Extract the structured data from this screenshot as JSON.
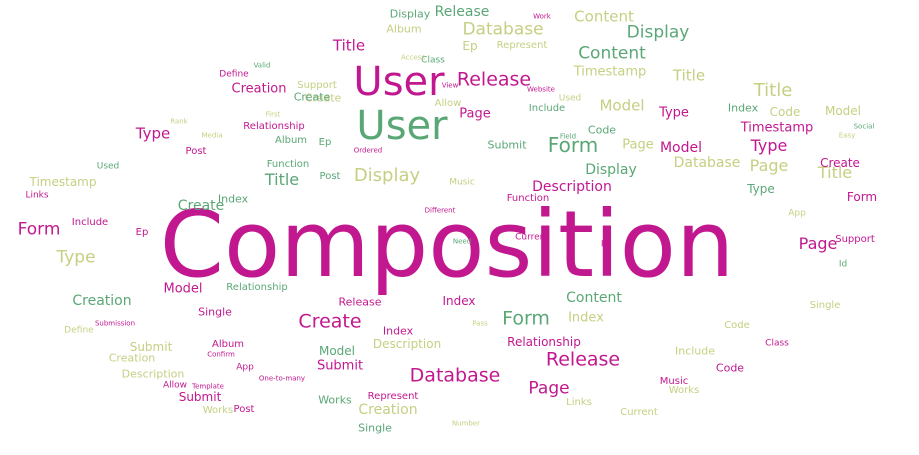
{
  "palette": {
    "magenta": "#c2188f",
    "green": "#5aa776",
    "olive": "#c6cf82",
    "pink": "#cf5aa6"
  },
  "words": [
    {
      "text": "Composition",
      "color": "magenta"
    },
    {
      "text": "User",
      "color": "magenta"
    },
    {
      "text": "User",
      "color": "green"
    },
    {
      "text": "Release",
      "color": "magenta"
    },
    {
      "text": "Release",
      "color": "green"
    },
    {
      "text": "Release",
      "color": "magenta"
    },
    {
      "text": "Release",
      "color": "magenta"
    },
    {
      "text": "Database",
      "color": "olive"
    },
    {
      "text": "Database",
      "color": "magenta"
    },
    {
      "text": "Database",
      "color": "olive"
    },
    {
      "text": "Display",
      "color": "green"
    },
    {
      "text": "Display",
      "color": "green"
    },
    {
      "text": "Display",
      "color": "olive"
    },
    {
      "text": "Display",
      "color": "green"
    },
    {
      "text": "Content",
      "color": "olive"
    },
    {
      "text": "Content",
      "color": "green"
    },
    {
      "text": "Content",
      "color": "green"
    },
    {
      "text": "Title",
      "color": "magenta"
    },
    {
      "text": "Title",
      "color": "olive"
    },
    {
      "text": "Title",
      "color": "green"
    },
    {
      "text": "Title",
      "color": "olive"
    },
    {
      "text": "Title",
      "color": "olive"
    },
    {
      "text": "Form",
      "color": "magenta"
    },
    {
      "text": "Form",
      "color": "green"
    },
    {
      "text": "Form",
      "color": "magenta"
    },
    {
      "text": "Form",
      "color": "green"
    },
    {
      "text": "Type",
      "color": "magenta"
    },
    {
      "text": "Type",
      "color": "magenta"
    },
    {
      "text": "Type",
      "color": "olive"
    },
    {
      "text": "Type",
      "color": "green"
    },
    {
      "text": "Type",
      "color": "magenta"
    },
    {
      "text": "Page",
      "color": "magenta"
    },
    {
      "text": "Page",
      "color": "olive"
    },
    {
      "text": "Page",
      "color": "olive"
    },
    {
      "text": "Page",
      "color": "magenta"
    },
    {
      "text": "Page",
      "color": "magenta"
    },
    {
      "text": "Create",
      "color": "magenta"
    },
    {
      "text": "Create",
      "color": "olive"
    },
    {
      "text": "Create",
      "color": "green"
    },
    {
      "text": "Create",
      "color": "magenta"
    },
    {
      "text": "Create",
      "color": "green"
    },
    {
      "text": "Creation",
      "color": "magenta"
    },
    {
      "text": "Creation",
      "color": "green"
    },
    {
      "text": "Creation",
      "color": "olive"
    },
    {
      "text": "Creation",
      "color": "olive"
    },
    {
      "text": "Model",
      "color": "olive"
    },
    {
      "text": "Model",
      "color": "magenta"
    },
    {
      "text": "Model",
      "color": "olive"
    },
    {
      "text": "Model",
      "color": "green"
    },
    {
      "text": "Model",
      "color": "magenta"
    },
    {
      "text": "Timestamp",
      "color": "olive"
    },
    {
      "text": "Timestamp",
      "color": "magenta"
    },
    {
      "text": "Timestamp",
      "color": "olive"
    },
    {
      "text": "Index",
      "color": "green"
    },
    {
      "text": "Index",
      "color": "magenta"
    },
    {
      "text": "Index",
      "color": "olive"
    },
    {
      "text": "Index",
      "color": "magenta"
    },
    {
      "text": "Index",
      "color": "green"
    },
    {
      "text": "Description",
      "color": "magenta"
    },
    {
      "text": "Description",
      "color": "olive"
    },
    {
      "text": "Description",
      "color": "olive"
    },
    {
      "text": "Submit",
      "color": "magenta"
    },
    {
      "text": "Submit",
      "color": "green"
    },
    {
      "text": "Submit",
      "color": "olive"
    },
    {
      "text": "Submit",
      "color": "magenta"
    },
    {
      "text": "Album",
      "color": "olive"
    },
    {
      "text": "Album",
      "color": "green"
    },
    {
      "text": "Album",
      "color": "magenta"
    },
    {
      "text": "Relationship",
      "color": "magenta"
    },
    {
      "text": "Relationship",
      "color": "green"
    },
    {
      "text": "Relationship",
      "color": "magenta"
    },
    {
      "text": "Code",
      "color": "olive"
    },
    {
      "text": "Code",
      "color": "green"
    },
    {
      "text": "Code",
      "color": "magenta"
    },
    {
      "text": "Code",
      "color": "olive"
    },
    {
      "text": "Single",
      "color": "green"
    },
    {
      "text": "Single",
      "color": "magenta"
    },
    {
      "text": "Single",
      "color": "olive"
    },
    {
      "text": "Include",
      "color": "magenta"
    },
    {
      "text": "Include",
      "color": "green"
    },
    {
      "text": "Include",
      "color": "olive"
    },
    {
      "text": "Works",
      "color": "olive"
    },
    {
      "text": "Works",
      "color": "green"
    },
    {
      "text": "Works",
      "color": "olive"
    },
    {
      "text": "Post",
      "color": "magenta"
    },
    {
      "text": "Post",
      "color": "green"
    },
    {
      "text": "Post",
      "color": "magenta"
    },
    {
      "text": "Ep",
      "color": "olive"
    },
    {
      "text": "Ep",
      "color": "green"
    },
    {
      "text": "Ep",
      "color": "magenta"
    },
    {
      "text": "Support",
      "color": "olive"
    },
    {
      "text": "Support",
      "color": "magenta"
    },
    {
      "text": "Current",
      "color": "magenta"
    },
    {
      "text": "Current",
      "color": "olive"
    },
    {
      "text": "Links",
      "color": "magenta"
    },
    {
      "text": "Links",
      "color": "olive"
    },
    {
      "text": "Function",
      "color": "magenta"
    },
    {
      "text": "Function",
      "color": "green"
    },
    {
      "text": "Represent",
      "color": "olive"
    },
    {
      "text": "Represent",
      "color": "magenta"
    },
    {
      "text": "Allow",
      "color": "olive"
    },
    {
      "text": "Allow",
      "color": "magenta"
    },
    {
      "text": "Define",
      "color": "magenta"
    },
    {
      "text": "Define",
      "color": "olive"
    },
    {
      "text": "Used",
      "color": "olive"
    },
    {
      "text": "Used",
      "color": "green"
    },
    {
      "text": "App",
      "color": "olive"
    },
    {
      "text": "App",
      "color": "magenta"
    },
    {
      "text": "Music",
      "color": "olive"
    },
    {
      "text": "Music",
      "color": "magenta"
    },
    {
      "text": "Class",
      "color": "green"
    },
    {
      "text": "Class",
      "color": "magenta"
    },
    {
      "text": "Id",
      "color": "magenta"
    },
    {
      "text": "Id",
      "color": "green"
    },
    {
      "text": "Template",
      "color": "magenta"
    },
    {
      "text": "Confirm",
      "color": "magenta"
    },
    {
      "text": "One-to-many",
      "color": "magenta"
    },
    {
      "text": "Media",
      "color": "olive"
    },
    {
      "text": "Website",
      "color": "magenta"
    },
    {
      "text": "Social",
      "color": "green"
    },
    {
      "text": "Number",
      "color": "olive"
    },
    {
      "text": "Different",
      "color": "magenta"
    },
    {
      "text": "Access",
      "color": "olive"
    },
    {
      "text": "Submission",
      "color": "magenta"
    },
    {
      "text": "Valid",
      "color": "green"
    },
    {
      "text": "Easy",
      "color": "olive"
    },
    {
      "text": "View",
      "color": "magenta"
    },
    {
      "text": "Ordered",
      "color": "magenta"
    },
    {
      "text": "First",
      "color": "olive"
    },
    {
      "text": "Need",
      "color": "green"
    },
    {
      "text": "Rank",
      "color": "olive"
    },
    {
      "text": "Field",
      "color": "green"
    },
    {
      "text": "Pass",
      "color": "olive"
    },
    {
      "text": "Work",
      "color": "magenta"
    }
  ]
}
